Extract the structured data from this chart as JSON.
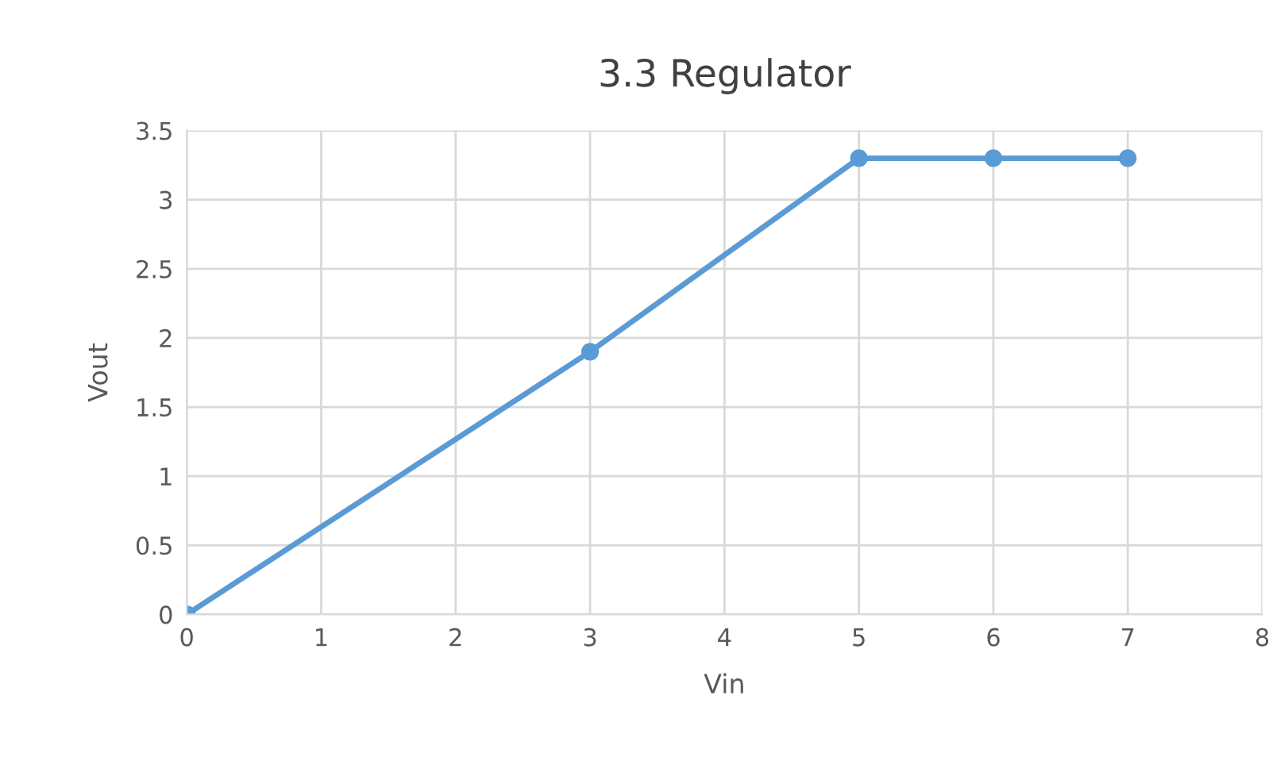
{
  "chart_data": {
    "type": "line",
    "title": "3.3 Regulator",
    "xlabel": "Vin",
    "ylabel": "Vout",
    "x": [
      0,
      3,
      5,
      6,
      7
    ],
    "series": [
      {
        "color": "#5b9bd5",
        "values": [
          0,
          1.9,
          3.3,
          3.3,
          3.3
        ]
      }
    ],
    "xlim": [
      0,
      8
    ],
    "xticks": [
      0,
      1,
      2,
      3,
      4,
      5,
      6,
      7,
      8
    ],
    "ylim": [
      0,
      3.5
    ],
    "yticks": [
      0,
      0.5,
      1,
      1.5,
      2,
      2.5,
      3,
      3.5
    ],
    "grid": true,
    "marker": "circle",
    "line_style": "solid",
    "legend": false
  }
}
